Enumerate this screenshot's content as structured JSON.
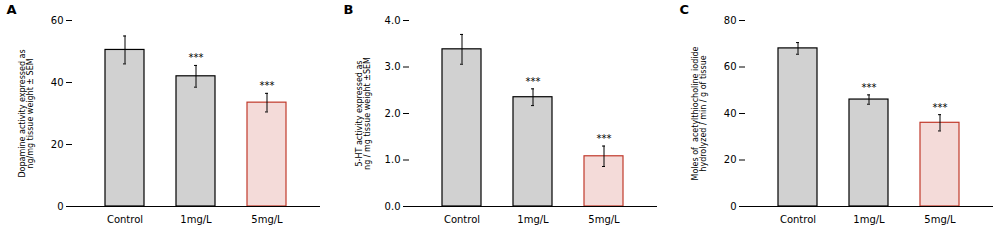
{
  "chart_data": [
    {
      "type": "bar",
      "title": "A",
      "categories": [
        "Control",
        "1mg/L",
        "5mg/L"
      ],
      "values": [
        50.5,
        42.0,
        33.5
      ],
      "errors": [
        4.5,
        3.5,
        3.0
      ],
      "ylim": [
        0,
        60
      ],
      "yticks": [
        0,
        20,
        40,
        60
      ],
      "ylabel": "Dopamine activity expressed as\nng/mg tissue weight ± SEM",
      "colors": [
        "black",
        "black",
        "#c0392b"
      ],
      "annotations": [
        {
          "category": "1mg/L",
          "text": "***"
        },
        {
          "category": "5mg/L",
          "text": "***"
        }
      ]
    },
    {
      "type": "bar",
      "title": "B",
      "categories": [
        "Control",
        "1mg/L",
        "5mg/L"
      ],
      "values": [
        3.38,
        2.35,
        1.08
      ],
      "errors": [
        0.32,
        0.18,
        0.22
      ],
      "ylim": [
        0,
        4
      ],
      "yticks": [
        0,
        1,
        2,
        3,
        4
      ],
      "ylabel": "5-HT activity expressed as\nng / mg tissue weight ±SEM",
      "colors": [
        "black",
        "black",
        "#c0392b"
      ],
      "annotations": [
        {
          "category": "1mg/L",
          "text": "***"
        },
        {
          "category": "5mg/L",
          "text": "***"
        }
      ]
    },
    {
      "type": "bar",
      "title": "C",
      "categories": [
        "Control",
        "1mg/L",
        "5mg/L"
      ],
      "values": [
        68.0,
        46.0,
        36.0
      ],
      "errors": [
        2.5,
        2.0,
        3.5
      ],
      "ylim": [
        0,
        80
      ],
      "yticks": [
        0,
        20,
        40,
        60,
        80
      ],
      "ylabel": "Moles of  acetylthiocholine iodide\nhydrolyzed / min / g of tissue",
      "colors": [
        "black",
        "black",
        "#c0392b"
      ],
      "annotations": [
        {
          "category": "1mg/L",
          "text": "***"
        },
        {
          "category": "5mg/L",
          "text": "***"
        }
      ]
    }
  ]
}
